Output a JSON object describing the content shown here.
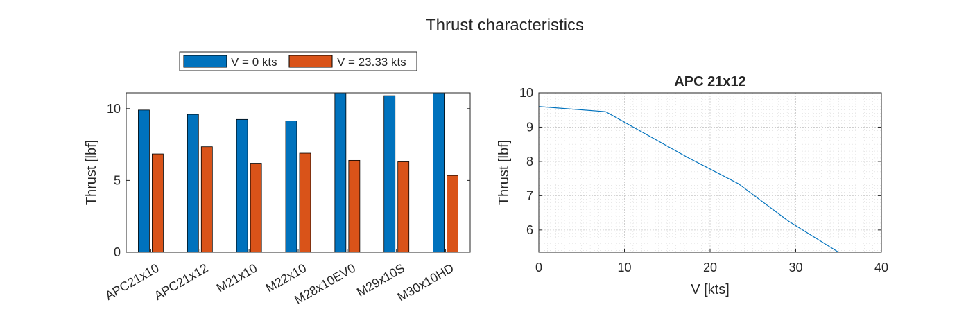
{
  "figure": {
    "title": "Thrust characteristics"
  },
  "colors": {
    "series1": "#0072bd",
    "series2": "#d95319",
    "line": "#0072bd",
    "axis": "#262626",
    "grid": "#c8c8c8"
  },
  "chart_data": [
    {
      "type": "bar",
      "title": "",
      "categories": [
        "APC21x10",
        "APC21x12",
        "M21x10",
        "M22x10",
        "M28x10EV0",
        "M29x10S",
        "M30x10HD"
      ],
      "series": [
        {
          "name": "V = 0 kts",
          "values": [
            9.9,
            9.6,
            9.25,
            9.15,
            11.2,
            10.9,
            11.25
          ]
        },
        {
          "name": "V = 23.33 kts",
          "values": [
            6.85,
            7.35,
            6.2,
            6.9,
            6.4,
            6.3,
            5.35
          ]
        }
      ],
      "xlabel": "",
      "ylabel": "Thrust [lbf]",
      "ylim": [
        0,
        11.1
      ],
      "yticks": [
        "0",
        "5",
        "10"
      ],
      "legend": "top, horizontal, outside",
      "grid": false
    },
    {
      "type": "line",
      "title": "APC 21x12",
      "x": [
        0,
        7.8,
        17.5,
        23.3,
        29.2,
        35
      ],
      "y": [
        9.6,
        9.45,
        8.1,
        7.35,
        6.25,
        5.35
      ],
      "xlabel": "V [kts]",
      "ylabel": "Thrust [lbf]",
      "xlim": [
        0,
        40
      ],
      "ylim": [
        5.35,
        10
      ],
      "xticks": [
        "0",
        "10",
        "20",
        "30",
        "40"
      ],
      "yticks": [
        "6",
        "7",
        "8",
        "9",
        "10"
      ],
      "grid": true,
      "minor_grid": true
    }
  ]
}
